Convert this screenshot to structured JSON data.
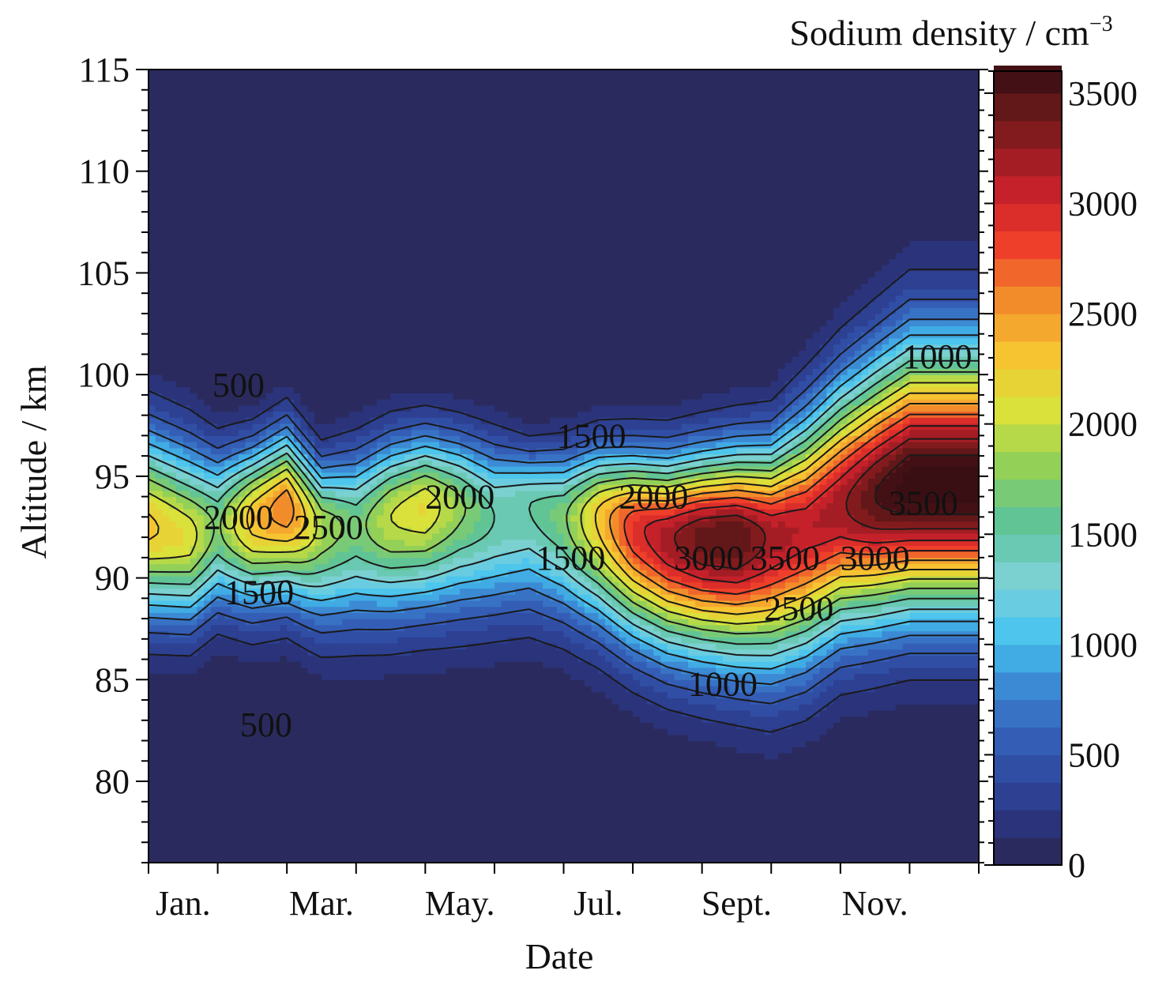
{
  "chart_data": {
    "type": "heatmap",
    "subtype": "filled-contour",
    "title": "",
    "xlabel": "Date",
    "ylabel": "Altitude / km",
    "colorbar_label": "Sodium density / cm",
    "colorbar_label_exponent": "−3",
    "x_ticks": [
      "Jan.",
      "Mar.",
      "May.",
      "Jul.",
      "Sept.",
      "Nov."
    ],
    "x_tick_months": [
      1,
      3,
      5,
      7,
      9,
      11
    ],
    "xlim": [
      1,
      13
    ],
    "y_ticks": [
      80,
      85,
      90,
      95,
      100,
      105,
      110,
      115
    ],
    "ylim": [
      76,
      115
    ],
    "colorbar_ticks": [
      0,
      500,
      1000,
      1500,
      2000,
      2500,
      3000,
      3500
    ],
    "colorbar_range": [
      0,
      3600
    ],
    "contour_interval": 250,
    "colormap": [
      "#2a2550",
      "#2b3a8a",
      "#3356b0",
      "#3a7fcf",
      "#45c3ef",
      "#7fd1d6",
      "#5cc39a",
      "#8fcf5a",
      "#d8e23a",
      "#f6c431",
      "#f28a2b",
      "#ee3a2a",
      "#c01e2a",
      "#7a1b1b",
      "#3a0f14"
    ],
    "months": [
      1.0,
      1.6,
      2.0,
      2.5,
      3.0,
      3.5,
      4.0,
      4.5,
      5.0,
      5.5,
      6.0,
      6.5,
      7.0,
      7.5,
      8.0,
      8.5,
      9.0,
      9.5,
      10.0,
      10.5,
      11.0,
      11.5,
      12.0
    ],
    "layer_peak_altitude_km": [
      92.5,
      92.0,
      92.5,
      93.0,
      93.5,
      92.5,
      92.5,
      93.0,
      93.5,
      93.5,
      93.0,
      93.5,
      93.0,
      93.0,
      92.5,
      92.0,
      92.0,
      92.0,
      92.0,
      92.5,
      93.5,
      94.0,
      94.5
    ],
    "peak_density_cm3": [
      2300,
      2100,
      1700,
      2350,
      2650,
      1900,
      1650,
      2000,
      2150,
      1800,
      1500,
      1500,
      1700,
      2300,
      2900,
      3200,
      3450,
      3500,
      3200,
      3100,
      3200,
      3500,
      3700
    ],
    "layer_lower_halfwidth_km": [
      4.2,
      4.0,
      3.8,
      4.2,
      4.2,
      4.5,
      4.6,
      4.7,
      4.8,
      4.9,
      4.6,
      4.8,
      4.7,
      5.0,
      5.2,
      5.3,
      5.5,
      5.7,
      6.0,
      6.0,
      5.8,
      5.8,
      5.8
    ],
    "layer_upper_halfwidth_km": [
      4.5,
      4.3,
      3.5,
      3.2,
      3.5,
      3.0,
      3.5,
      3.6,
      3.4,
      3.3,
      3.4,
      2.6,
      3.0,
      3.2,
      3.4,
      3.6,
      3.8,
      4.0,
      4.2,
      5.0,
      5.5,
      6.0,
      6.5
    ],
    "contour_labels": [
      {
        "text": "500",
        "month": 2.3,
        "alt": 99.5
      },
      {
        "text": "2000",
        "month": 2.3,
        "alt": 93.0
      },
      {
        "text": "2500",
        "month": 3.6,
        "alt": 92.5
      },
      {
        "text": "1500",
        "month": 2.6,
        "alt": 89.3
      },
      {
        "text": "500",
        "month": 2.7,
        "alt": 82.8
      },
      {
        "text": "2000",
        "month": 5.5,
        "alt": 94.0
      },
      {
        "text": "1500",
        "month": 7.4,
        "alt": 97.0
      },
      {
        "text": "2000",
        "month": 8.3,
        "alt": 94.0
      },
      {
        "text": "1500",
        "month": 7.1,
        "alt": 91.0
      },
      {
        "text": "3000",
        "month": 9.1,
        "alt": 91.0
      },
      {
        "text": "3500",
        "month": 10.2,
        "alt": 91.0
      },
      {
        "text": "3000",
        "month": 11.5,
        "alt": 91.0
      },
      {
        "text": "2500",
        "month": 10.4,
        "alt": 88.5
      },
      {
        "text": "1000",
        "month": 9.3,
        "alt": 84.8
      },
      {
        "text": "1000",
        "month": 12.4,
        "alt": 100.9
      },
      {
        "text": "3500",
        "month": 12.2,
        "alt": 93.7
      }
    ]
  }
}
